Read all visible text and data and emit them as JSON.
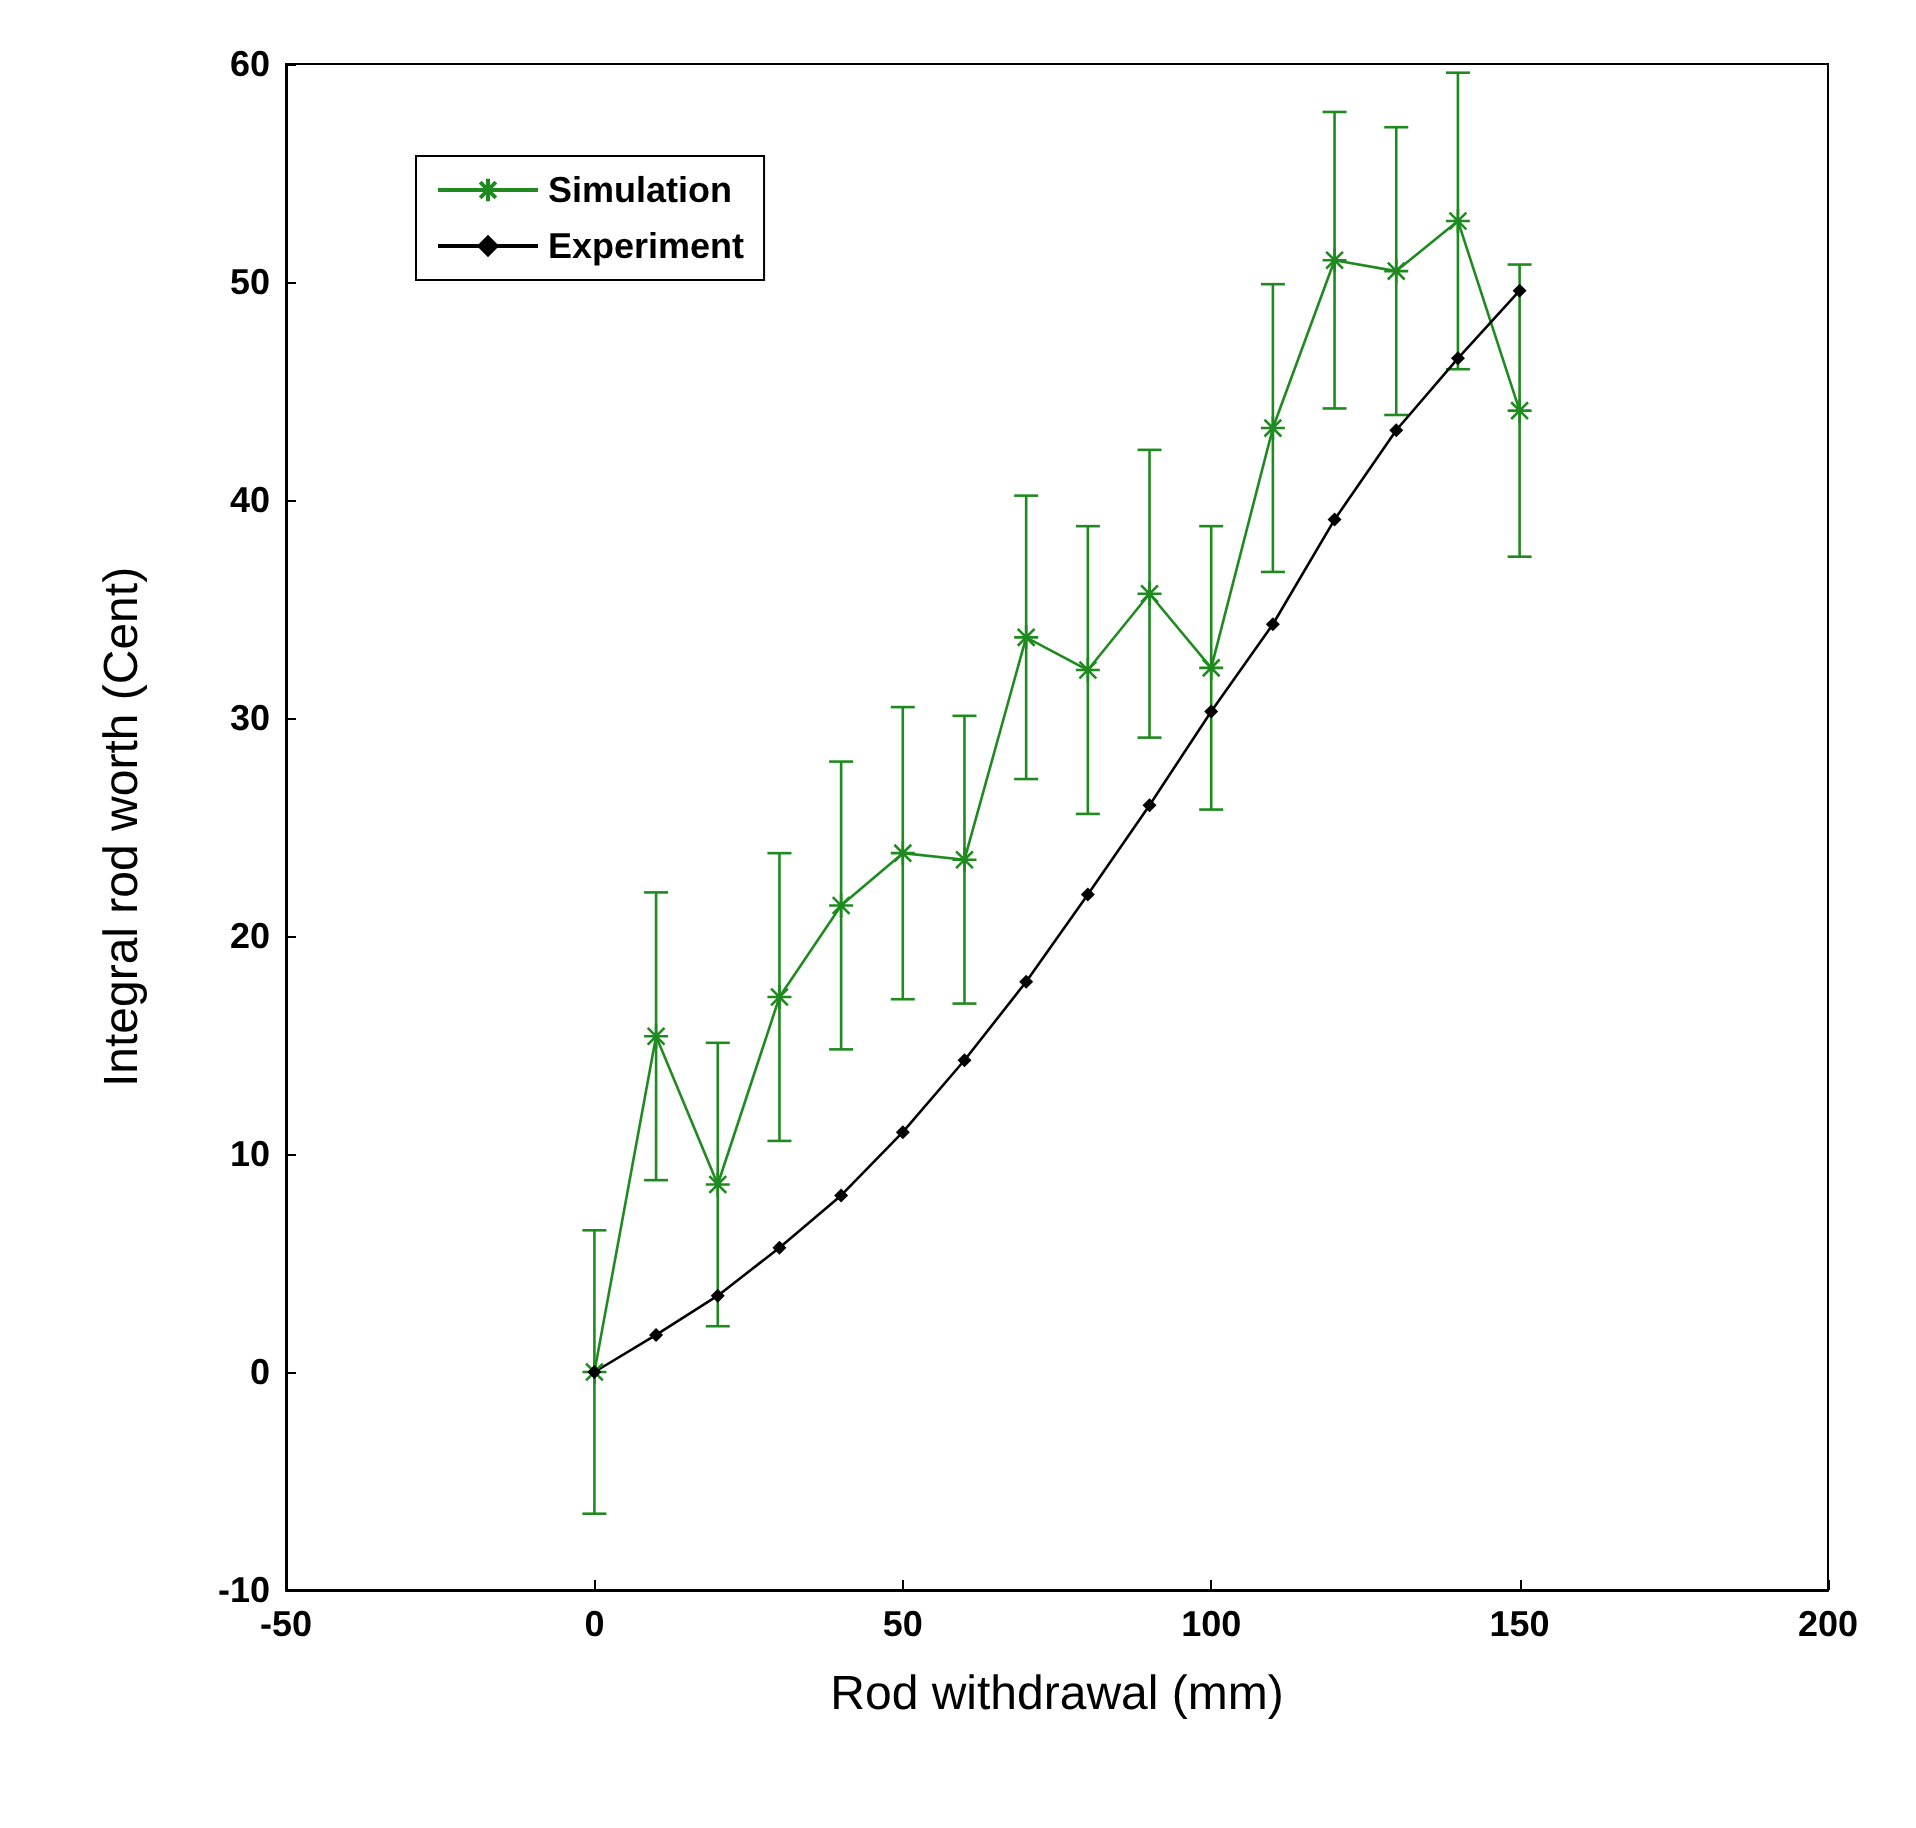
{
  "chart_data": {
    "type": "line",
    "xlabel": "Rod withdrawal (mm)",
    "ylabel": "Integral rod worth (Cent)",
    "x": [
      0,
      10,
      20,
      30,
      40,
      50,
      60,
      70,
      80,
      90,
      100,
      110,
      120,
      130,
      140,
      150
    ],
    "series": [
      {
        "name": "Simulation",
        "color": "#1f8a1f",
        "marker": "cross",
        "values": [
          0,
          15.4,
          8.6,
          17.2,
          21.4,
          23.8,
          23.5,
          33.7,
          32.2,
          35.7,
          32.3,
          43.3,
          51,
          50.5,
          52.8,
          44.1
        ],
        "errors": [
          6.5,
          6.6,
          6.5,
          6.6,
          6.6,
          6.7,
          6.6,
          6.5,
          6.6,
          6.6,
          6.5,
          6.6,
          6.8,
          6.6,
          6.8,
          6.7
        ]
      },
      {
        "name": "Experiment",
        "color": "#000000",
        "marker": "diamond",
        "values": [
          0,
          1.7,
          3.5,
          5.7,
          8.1,
          11,
          14.3,
          17.9,
          21.9,
          26,
          30.3,
          34.3,
          39.1,
          43.2,
          46.5,
          49.6
        ]
      }
    ],
    "xlim": [
      -50,
      200
    ],
    "xticks": [
      -50,
      0,
      50,
      100,
      150,
      200
    ],
    "ylim": [
      -10,
      60
    ],
    "yticks": [
      -10,
      0,
      10,
      20,
      30,
      40,
      50,
      60
    ],
    "grid": false,
    "legend": "top left",
    "line_style": "solid"
  }
}
